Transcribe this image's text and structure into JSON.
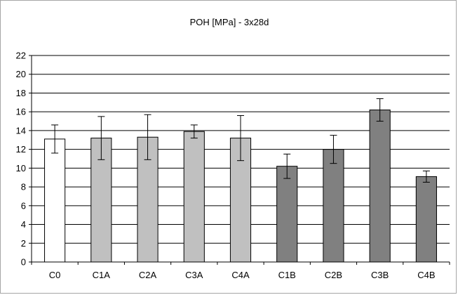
{
  "chart_data": {
    "type": "bar",
    "title": "POH [MPa] - 3x28d",
    "xlabel": "",
    "ylabel": "",
    "ylim": [
      0,
      22
    ],
    "ytick_step": 2,
    "yticks": [
      "0",
      "2",
      "4",
      "6",
      "8",
      "10",
      "12",
      "14",
      "16",
      "18",
      "20",
      "22"
    ],
    "grid": true,
    "legend": "none",
    "error_bars": true,
    "categories": [
      "C0",
      "C1A",
      "C2A",
      "C3A",
      "C4A",
      "C1B",
      "C2B",
      "C3B",
      "C4B"
    ],
    "values": [
      13.1,
      13.2,
      13.3,
      13.9,
      13.2,
      10.2,
      12.0,
      16.2,
      9.1
    ],
    "errors": [
      1.5,
      2.3,
      2.4,
      0.7,
      2.4,
      1.3,
      1.5,
      1.2,
      0.6
    ],
    "bar_colors": [
      "#ffffff",
      "#c0c0c0",
      "#c0c0c0",
      "#c0c0c0",
      "#c0c0c0",
      "#808080",
      "#808080",
      "#808080",
      "#808080"
    ]
  }
}
